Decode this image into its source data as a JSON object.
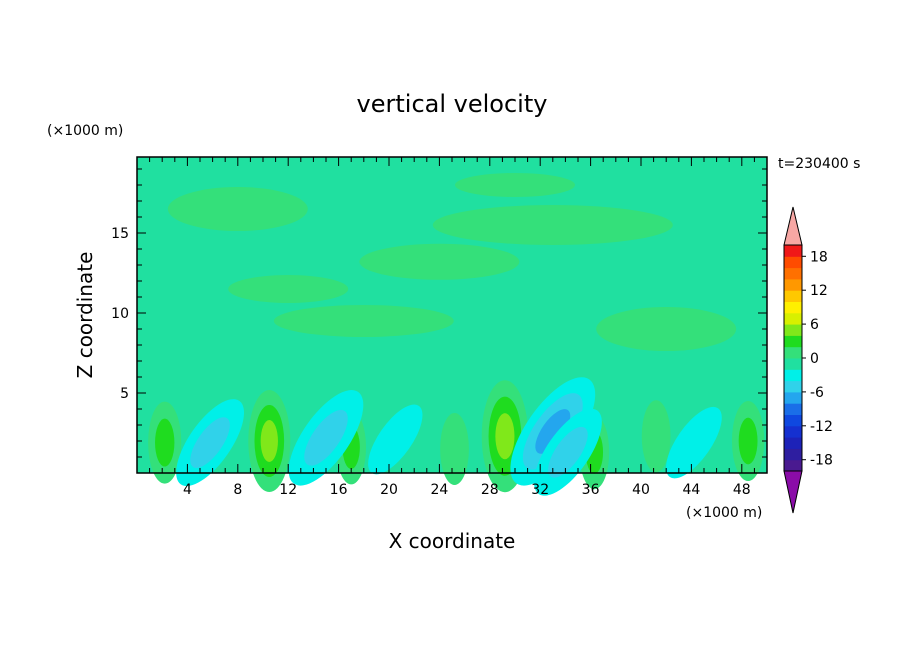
{
  "chart_data": {
    "type": "heatmap",
    "title": "vertical velocity",
    "xlabel": "X coordinate",
    "ylabel": "Z coordinate",
    "x_unit": "(×1000 m)",
    "y_unit": "(×1000 m)",
    "time_label": "t=230400 s",
    "xlim": [
      0,
      50
    ],
    "ylim": [
      0,
      19.75
    ],
    "x_ticks": [
      4,
      8,
      12,
      16,
      20,
      24,
      28,
      32,
      36,
      40,
      44,
      48
    ],
    "y_ticks": [
      5,
      10,
      15
    ],
    "colorbar": {
      "levels": [
        -20,
        -18,
        -16,
        -14,
        -12,
        -10,
        -8,
        -6,
        -4,
        -2,
        0,
        2,
        4,
        6,
        8,
        10,
        12,
        14,
        16,
        18,
        20
      ],
      "tick_labels": [
        "18",
        "12",
        "6",
        "0",
        "-6",
        "-12",
        "-18"
      ],
      "colors": [
        "#4a1a90",
        "#2e1ea0",
        "#1d22b8",
        "#1530d0",
        "#0f48e0",
        "#1a6ee8",
        "#24a6ee",
        "#30d2ea",
        "#00f0e8",
        "#20e0a0",
        "#34e07a",
        "#1fdc1f",
        "#80e81a",
        "#d8f000",
        "#fff000",
        "#ffc800",
        "#ff9800",
        "#ff7000",
        "#ff4c00",
        "#f01818"
      ],
      "under_color": "#8a0ca8",
      "over_color": "#f7a7a4"
    },
    "features": [
      {
        "x": 2.2,
        "z": 1.9,
        "w": 3.0
      },
      {
        "x": 10.5,
        "z": 2.0,
        "w": 5.0
      },
      {
        "x": 17.0,
        "z": 1.6,
        "w": 2.2
      },
      {
        "x": 25.2,
        "z": 1.5,
        "w": 2.0
      },
      {
        "x": 29.2,
        "z": 2.3,
        "w": 6.0
      },
      {
        "x": 36.3,
        "z": 1.3,
        "w": 2.2
      },
      {
        "x": 41.2,
        "z": 2.3,
        "w": 2.0
      },
      {
        "x": 48.5,
        "z": 2.0,
        "w": 2.8
      },
      {
        "x": 5.8,
        "z": 1.9,
        "w": -5.0
      },
      {
        "x": 15.0,
        "z": 2.2,
        "w": -6.0
      },
      {
        "x": 33.0,
        "z": 2.6,
        "w": -7.5
      },
      {
        "x": 34.2,
        "z": 1.3,
        "w": -5.0
      },
      {
        "x": 20.5,
        "z": 2.1,
        "w": -3.0
      },
      {
        "x": 44.2,
        "z": 1.9,
        "w": -3.2
      }
    ]
  }
}
